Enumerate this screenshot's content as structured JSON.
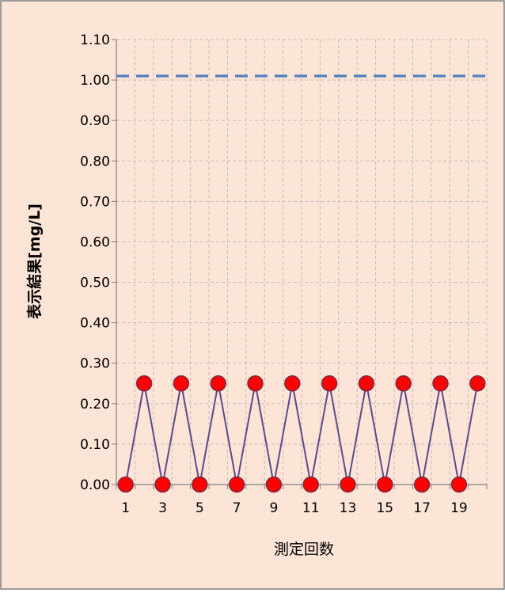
{
  "colors": {
    "background": "#FCE4D6",
    "border": "#7F7F7F",
    "grid": "#BFBFBF",
    "line": "#5B4A8A",
    "marker_fill": "#FF0000",
    "marker_stroke": "#7A2E46",
    "limit_line": "#4F81BD"
  },
  "chart_data": {
    "type": "line",
    "title": "",
    "xlabel": "測定回数",
    "ylabel": "表示結果[mg/L]",
    "x_tick_labels": [
      "1",
      "3",
      "5",
      "7",
      "9",
      "11",
      "13",
      "15",
      "17",
      "19"
    ],
    "y_tick_labels": [
      "0.00",
      "0.10",
      "0.20",
      "0.30",
      "0.40",
      "0.50",
      "0.60",
      "0.70",
      "0.80",
      "0.90",
      "1.00",
      "1.10"
    ],
    "xlim": [
      0.5,
      20.5
    ],
    "ylim": [
      0,
      1.1
    ],
    "grid": true,
    "legend": "none",
    "series": [
      {
        "x": [
          1,
          2,
          3,
          4,
          5,
          6,
          7,
          8,
          9,
          10,
          11,
          12,
          13,
          14,
          15,
          16,
          17,
          18,
          19,
          20
        ],
        "values": [
          0.0,
          0.25,
          0.0,
          0.25,
          0.0,
          0.25,
          0.0,
          0.25,
          0.0,
          0.25,
          0.0,
          0.25,
          0.0,
          0.25,
          0.0,
          0.25,
          0.0,
          0.25,
          0.0,
          0.25
        ]
      }
    ],
    "reference_lines": [
      {
        "y": 1.01,
        "style": "dashed"
      }
    ]
  }
}
